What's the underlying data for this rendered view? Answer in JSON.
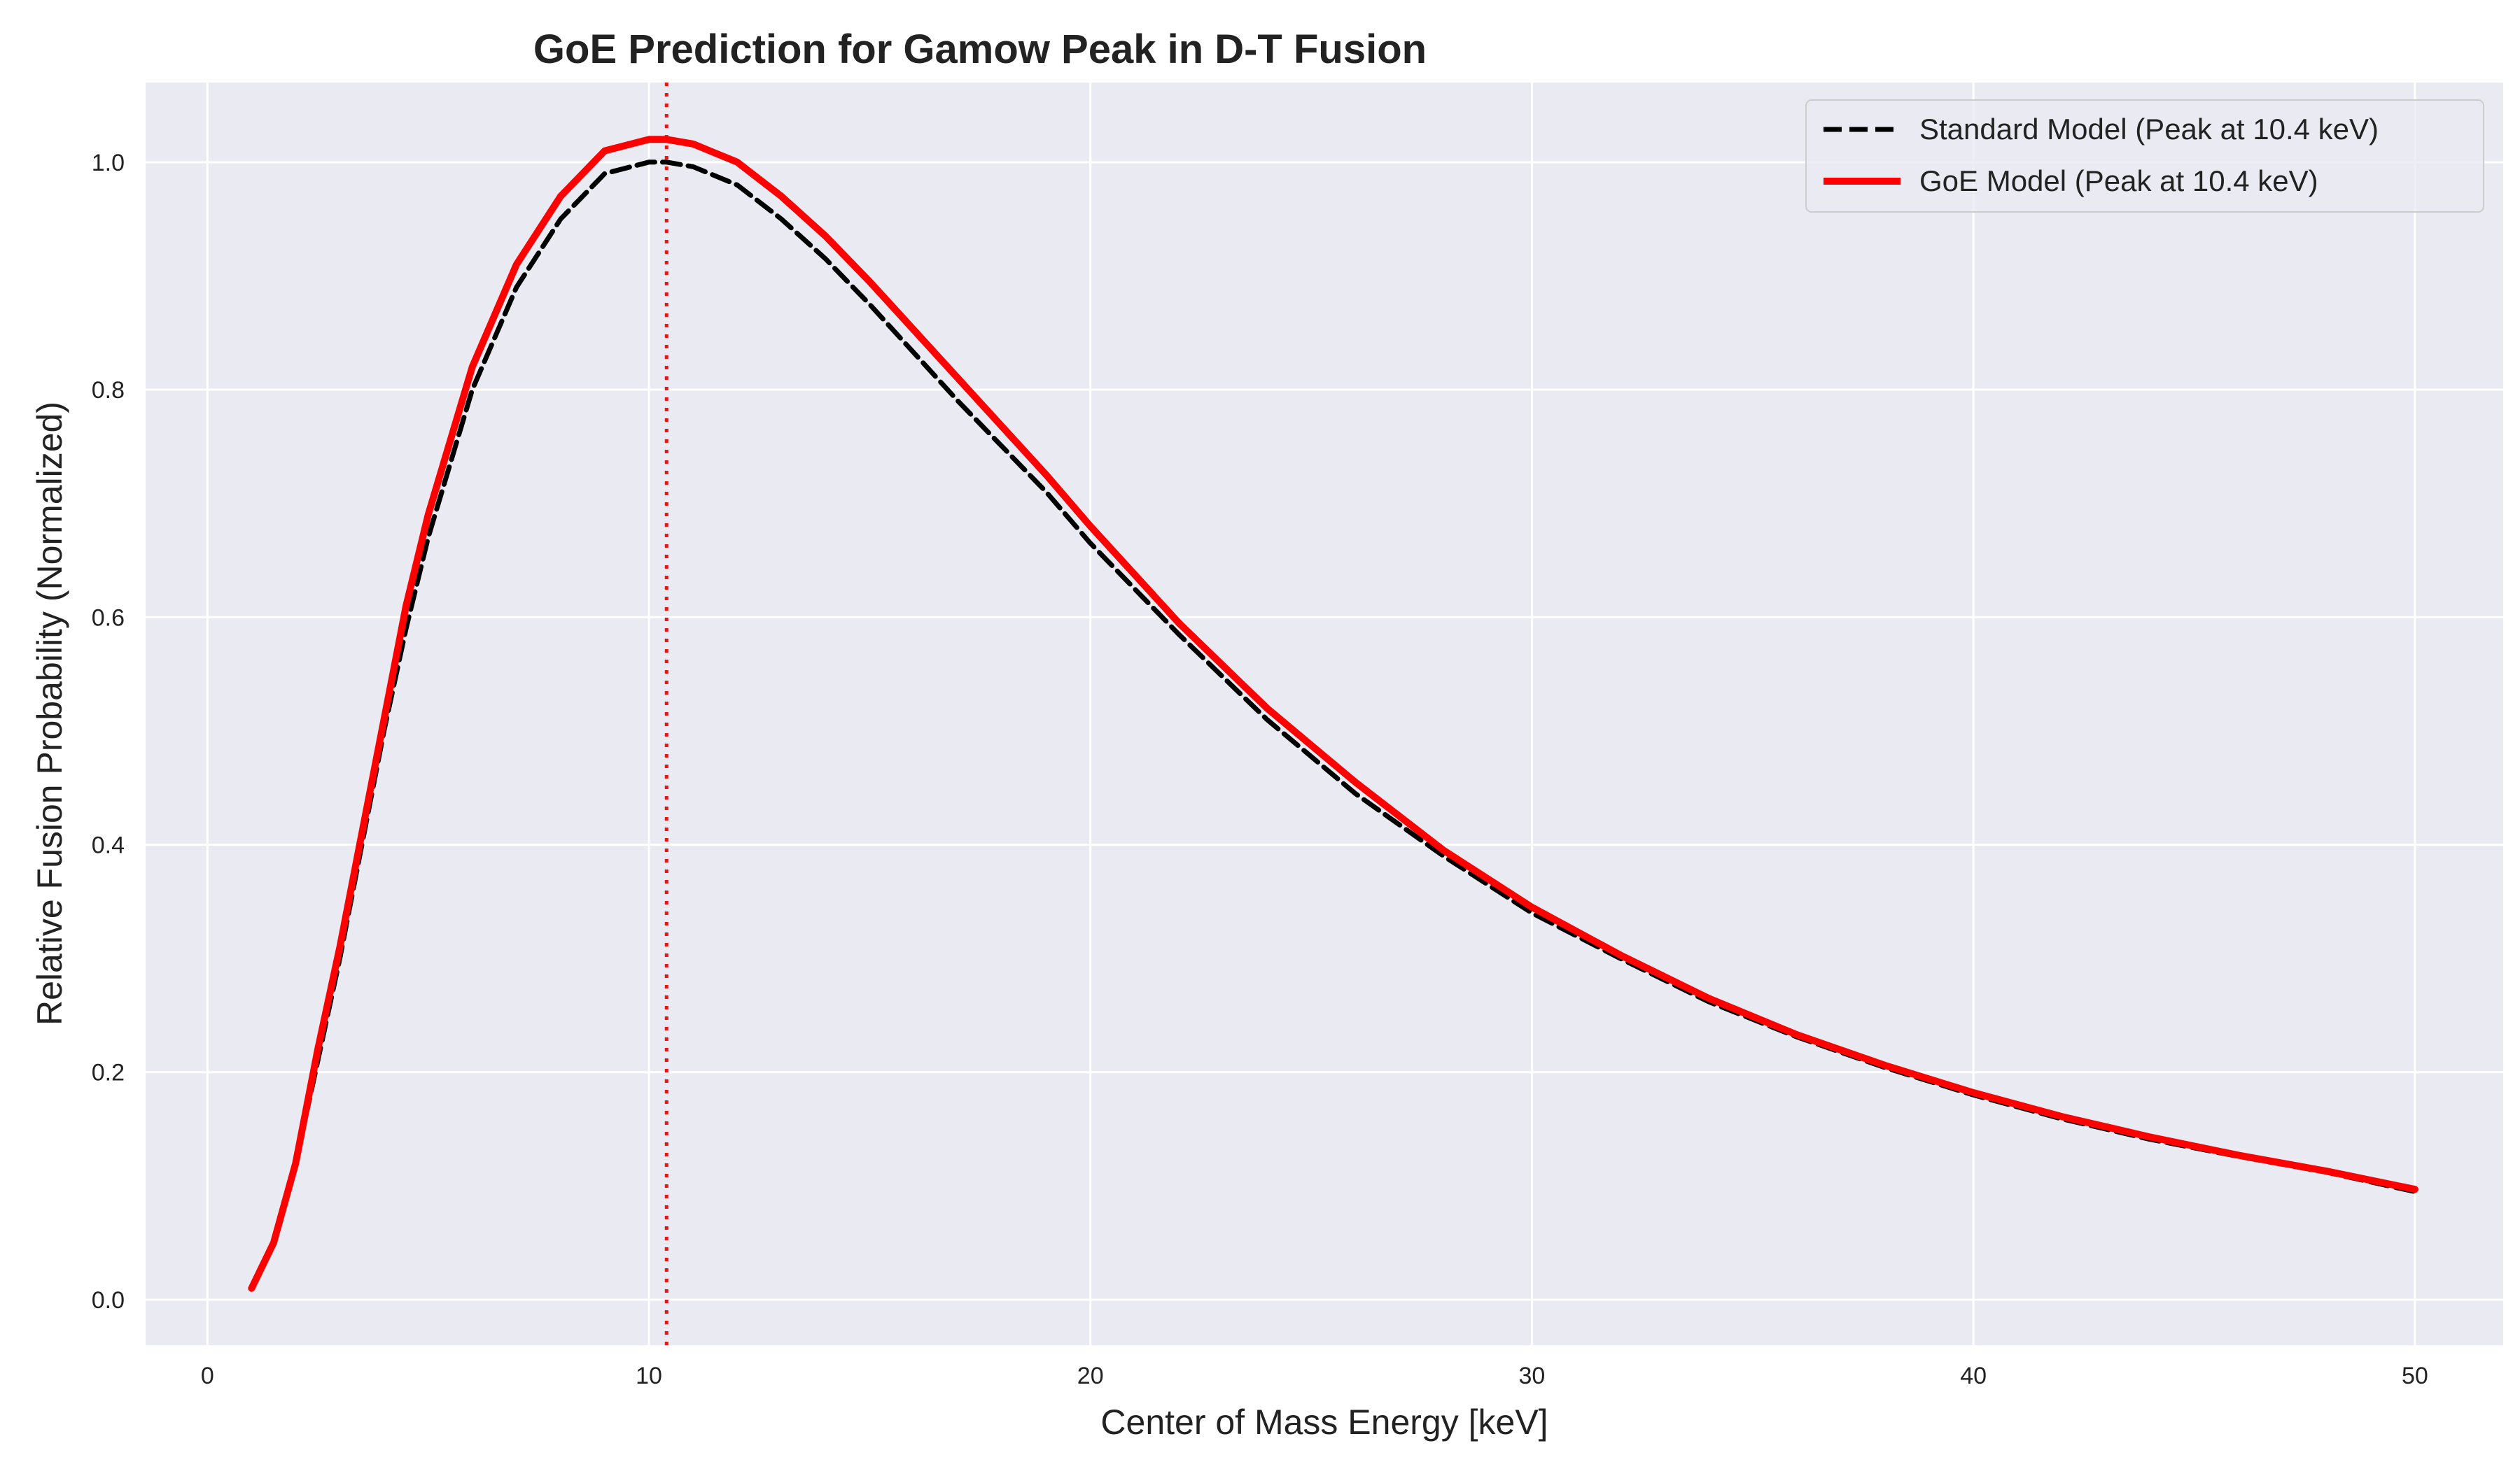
{
  "chart_data": {
    "type": "line",
    "title": "GoE Prediction for Gamow Peak in D-T Fusion",
    "xlabel": "Center of Mass Energy [keV]",
    "ylabel": "Relative Fusion Probability (Normalized)",
    "xlim": [
      -1.4,
      52.0
    ],
    "ylim": [
      -0.04,
      1.07
    ],
    "xticks": [
      0,
      10,
      20,
      30,
      40,
      50
    ],
    "xtick_labels": [
      "0",
      "10",
      "20",
      "30",
      "40",
      "50"
    ],
    "yticks": [
      0.0,
      0.2,
      0.4,
      0.6,
      0.8,
      1.0
    ],
    "ytick_labels": [
      "0.0",
      "0.2",
      "0.4",
      "0.6",
      "0.8",
      "1.0"
    ],
    "grid": true,
    "legend_position": "top-right",
    "background_color": "#eaeaf2",
    "series": [
      {
        "name": "Standard Model (Peak at 10.4 keV)",
        "color": "#000000",
        "style": "dashed",
        "x": [
          1,
          1.5,
          2,
          2.5,
          3,
          3.5,
          4,
          4.5,
          5,
          6,
          7,
          8,
          9,
          10,
          10.4,
          11,
          12,
          13,
          14,
          15,
          17,
          19,
          20,
          22,
          24,
          26,
          28,
          30,
          32,
          34,
          36,
          38,
          40,
          42,
          44,
          46,
          48,
          50
        ],
        "y": [
          0.01,
          0.05,
          0.12,
          0.21,
          0.3,
          0.4,
          0.5,
          0.59,
          0.67,
          0.8,
          0.89,
          0.95,
          0.99,
          1.0,
          1.0,
          0.996,
          0.98,
          0.95,
          0.915,
          0.875,
          0.79,
          0.71,
          0.665,
          0.585,
          0.51,
          0.445,
          0.39,
          0.34,
          0.3,
          0.262,
          0.231,
          0.204,
          0.18,
          0.159,
          0.141,
          0.126,
          0.112,
          0.095
        ]
      },
      {
        "name": "GoE Model (Peak at 10.4 keV)",
        "color": "#ff0000",
        "style": "solid",
        "x": [
          1,
          1.5,
          2,
          2.5,
          3,
          3.5,
          4,
          4.5,
          5,
          6,
          7,
          8,
          9,
          10,
          10.4,
          11,
          12,
          13,
          14,
          15,
          17,
          19,
          20,
          22,
          24,
          26,
          28,
          30,
          32,
          34,
          36,
          38,
          40,
          42,
          44,
          46,
          48,
          50
        ],
        "y": [
          0.01,
          0.05,
          0.12,
          0.22,
          0.31,
          0.41,
          0.51,
          0.61,
          0.69,
          0.82,
          0.91,
          0.97,
          1.01,
          1.02,
          1.02,
          1.016,
          1.0,
          0.97,
          0.935,
          0.895,
          0.81,
          0.725,
          0.68,
          0.595,
          0.52,
          0.455,
          0.395,
          0.345,
          0.303,
          0.265,
          0.233,
          0.206,
          0.182,
          0.161,
          0.143,
          0.127,
          0.113,
          0.097
        ]
      }
    ],
    "annotations": [
      {
        "type": "vline",
        "x": 10.4,
        "color": "#e8161b",
        "style": "dotted"
      }
    ]
  }
}
